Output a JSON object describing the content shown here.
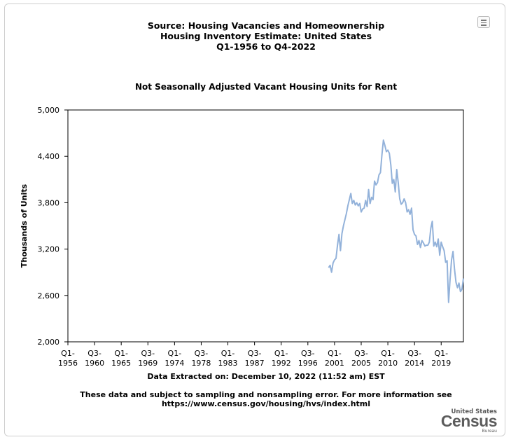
{
  "header": {
    "title_line1": "Source: Housing Vacancies and Homeownership",
    "title_line2": "Housing Inventory Estimate: United States",
    "title_line3": "Q1-1956 to Q4-2022",
    "subtitle": "Not Seasonally Adjusted Vacant Housing Units for Rent",
    "menu_icon": "hamburger-menu-icon"
  },
  "footer": {
    "extracted": "Data Extracted on: December 10, 2022 (11:52 am) EST",
    "disclaimer_line1": "These data and subject to sampling and nonsampling error. For more information see",
    "disclaimer_line2": "https://www.census.gov/housing/hvs/index.html"
  },
  "logo": {
    "top": "United States",
    "big": "Census",
    "bottom": "Bureau"
  },
  "chart_data": {
    "type": "line",
    "title": "Not Seasonally Adjusted Vacant Housing Units for Rent",
    "ylabel": "Thousands of Units",
    "xlabel": "",
    "ylim": [
      2000,
      5000
    ],
    "xlim": [
      "Q1-1956",
      "Q4-2022"
    ],
    "grid": false,
    "line_color": "#93b2da",
    "y_ticks": [
      "2,000",
      "2,600",
      "3,200",
      "3,800",
      "4,400",
      "5,000"
    ],
    "y_tick_values": [
      2000,
      2600,
      3200,
      3800,
      4400,
      5000
    ],
    "x_ticks": [
      {
        "q": "Q1-",
        "year": "1956"
      },
      {
        "q": "Q3-",
        "year": "1960"
      },
      {
        "q": "Q1-",
        "year": "1965"
      },
      {
        "q": "Q3-",
        "year": "1969"
      },
      {
        "q": "Q1-",
        "year": "1974"
      },
      {
        "q": "Q3-",
        "year": "1978"
      },
      {
        "q": "Q1-",
        "year": "1983"
      },
      {
        "q": "Q3-",
        "year": "1987"
      },
      {
        "q": "Q1-",
        "year": "1992"
      },
      {
        "q": "Q3-",
        "year": "1996"
      },
      {
        "q": "Q1-",
        "year": "2001"
      },
      {
        "q": "Q3-",
        "year": "2005"
      },
      {
        "q": "Q1-",
        "year": "2010"
      },
      {
        "q": "Q3-",
        "year": "2014"
      },
      {
        "q": "Q1-",
        "year": "2019"
      }
    ],
    "series": [
      {
        "values": [
          {
            "x": "Q1-2000",
            "y": 2960
          },
          {
            "x": "Q2-2000",
            "y": 2990
          },
          {
            "x": "Q3-2000",
            "y": 2900
          },
          {
            "x": "Q4-2000",
            "y": 3020
          },
          {
            "x": "Q1-2001",
            "y": 3060
          },
          {
            "x": "Q2-2001",
            "y": 3080
          },
          {
            "x": "Q3-2001",
            "y": 3250
          },
          {
            "x": "Q4-2001",
            "y": 3390
          },
          {
            "x": "Q1-2002",
            "y": 3180
          },
          {
            "x": "Q2-2002",
            "y": 3400
          },
          {
            "x": "Q3-2002",
            "y": 3500
          },
          {
            "x": "Q4-2002",
            "y": 3580
          },
          {
            "x": "Q1-2003",
            "y": 3660
          },
          {
            "x": "Q2-2003",
            "y": 3760
          },
          {
            "x": "Q3-2003",
            "y": 3840
          },
          {
            "x": "Q4-2003",
            "y": 3920
          },
          {
            "x": "Q1-2004",
            "y": 3790
          },
          {
            "x": "Q2-2004",
            "y": 3830
          },
          {
            "x": "Q3-2004",
            "y": 3770
          },
          {
            "x": "Q4-2004",
            "y": 3800
          },
          {
            "x": "Q1-2005",
            "y": 3760
          },
          {
            "x": "Q2-2005",
            "y": 3790
          },
          {
            "x": "Q3-2005",
            "y": 3680
          },
          {
            "x": "Q4-2005",
            "y": 3720
          },
          {
            "x": "Q1-2006",
            "y": 3730
          },
          {
            "x": "Q2-2006",
            "y": 3830
          },
          {
            "x": "Q3-2006",
            "y": 3750
          },
          {
            "x": "Q4-2006",
            "y": 3970
          },
          {
            "x": "Q1-2007",
            "y": 3790
          },
          {
            "x": "Q2-2007",
            "y": 3870
          },
          {
            "x": "Q3-2007",
            "y": 3840
          },
          {
            "x": "Q4-2007",
            "y": 4080
          },
          {
            "x": "Q1-2008",
            "y": 4030
          },
          {
            "x": "Q2-2008",
            "y": 4060
          },
          {
            "x": "Q3-2008",
            "y": 4160
          },
          {
            "x": "Q4-2008",
            "y": 4190
          },
          {
            "x": "Q1-2009",
            "y": 4420
          },
          {
            "x": "Q2-2009",
            "y": 4610
          },
          {
            "x": "Q3-2009",
            "y": 4540
          },
          {
            "x": "Q4-2009",
            "y": 4460
          },
          {
            "x": "Q1-2010",
            "y": 4480
          },
          {
            "x": "Q2-2010",
            "y": 4440
          },
          {
            "x": "Q3-2010",
            "y": 4290
          },
          {
            "x": "Q4-2010",
            "y": 4050
          },
          {
            "x": "Q1-2011",
            "y": 4100
          },
          {
            "x": "Q2-2011",
            "y": 3940
          },
          {
            "x": "Q3-2011",
            "y": 4230
          },
          {
            "x": "Q4-2011",
            "y": 4060
          },
          {
            "x": "Q1-2012",
            "y": 3850
          },
          {
            "x": "Q2-2012",
            "y": 3780
          },
          {
            "x": "Q3-2012",
            "y": 3800
          },
          {
            "x": "Q4-2012",
            "y": 3850
          },
          {
            "x": "Q1-2013",
            "y": 3800
          },
          {
            "x": "Q2-2013",
            "y": 3680
          },
          {
            "x": "Q3-2013",
            "y": 3710
          },
          {
            "x": "Q4-2013",
            "y": 3650
          },
          {
            "x": "Q1-2014",
            "y": 3730
          },
          {
            "x": "Q2-2014",
            "y": 3450
          },
          {
            "x": "Q3-2014",
            "y": 3390
          },
          {
            "x": "Q4-2014",
            "y": 3370
          },
          {
            "x": "Q1-2015",
            "y": 3260
          },
          {
            "x": "Q2-2015",
            "y": 3310
          },
          {
            "x": "Q3-2015",
            "y": 3220
          },
          {
            "x": "Q4-2015",
            "y": 3310
          },
          {
            "x": "Q1-2016",
            "y": 3280
          },
          {
            "x": "Q2-2016",
            "y": 3240
          },
          {
            "x": "Q3-2016",
            "y": 3250
          },
          {
            "x": "Q4-2016",
            "y": 3250
          },
          {
            "x": "Q1-2017",
            "y": 3290
          },
          {
            "x": "Q2-2017",
            "y": 3470
          },
          {
            "x": "Q3-2017",
            "y": 3560
          },
          {
            "x": "Q4-2017",
            "y": 3240
          },
          {
            "x": "Q1-2018",
            "y": 3290
          },
          {
            "x": "Q2-2018",
            "y": 3230
          },
          {
            "x": "Q3-2018",
            "y": 3330
          },
          {
            "x": "Q4-2018",
            "y": 3120
          },
          {
            "x": "Q1-2019",
            "y": 3290
          },
          {
            "x": "Q2-2019",
            "y": 3230
          },
          {
            "x": "Q3-2019",
            "y": 3180
          },
          {
            "x": "Q4-2019",
            "y": 3030
          },
          {
            "x": "Q1-2020",
            "y": 3050
          },
          {
            "x": "Q2-2020",
            "y": 2510
          },
          {
            "x": "Q3-2020",
            "y": 2810
          },
          {
            "x": "Q4-2020",
            "y": 3060
          },
          {
            "x": "Q1-2021",
            "y": 3170
          },
          {
            "x": "Q2-2021",
            "y": 2940
          },
          {
            "x": "Q3-2021",
            "y": 2770
          },
          {
            "x": "Q4-2021",
            "y": 2700
          },
          {
            "x": "Q1-2022",
            "y": 2760
          },
          {
            "x": "Q2-2022",
            "y": 2650
          },
          {
            "x": "Q3-2022",
            "y": 2680
          },
          {
            "x": "Q4-2022",
            "y": 2820
          }
        ]
      }
    ]
  }
}
